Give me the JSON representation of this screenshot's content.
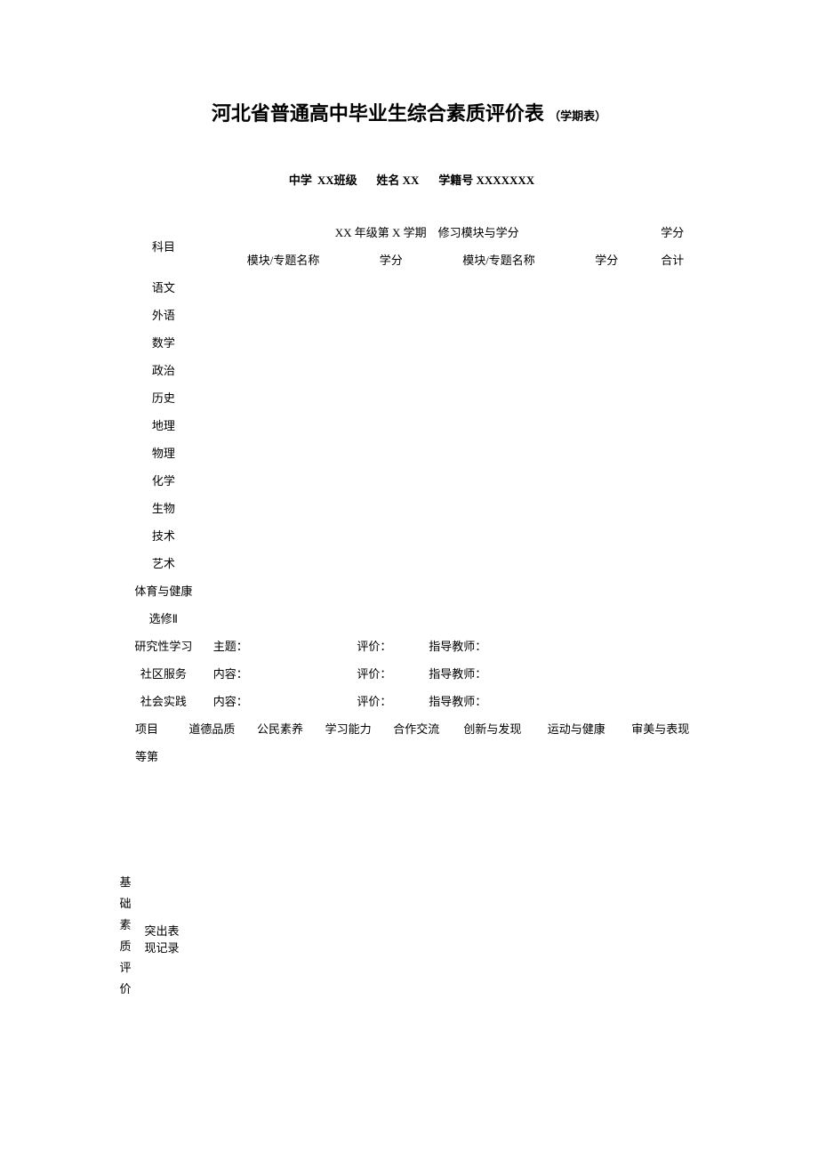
{
  "title": {
    "main": "河北省普通高中毕业生综合素质评价表",
    "suffix": "（学期表）"
  },
  "info": {
    "school_label": "中学",
    "class_value": "XX",
    "class_label": "班级",
    "name_label": "姓名",
    "name_value": "XX",
    "id_label": "学籍号",
    "id_value": "XXXXXXX"
  },
  "headers": {
    "subject": "科目",
    "semester": "XX 年级第 X 学期　修习模块与学分",
    "credit_total_top": "学分",
    "module_name": "模块/专题名称",
    "credit": "学分",
    "module_name2": "模块/专题名称",
    "credit2": "学分",
    "total": "合计"
  },
  "subjects": [
    "语文",
    "外语",
    "数学",
    "政治",
    "历史",
    "地理",
    "物理",
    "化学",
    "生物",
    "技术",
    "艺术",
    "体育与健康",
    "选修Ⅱ"
  ],
  "activities": {
    "research": {
      "label": "研究性学习",
      "c1": "主题：",
      "c2": "评价：",
      "c3": "指导教师："
    },
    "community": {
      "label": "社区服务",
      "c1": "内容：",
      "c2": "评价：",
      "c3": "指导教师："
    },
    "practice": {
      "label": "社会实践",
      "c1": "内容：",
      "c2": "评价：",
      "c3": "指导教师："
    }
  },
  "quality": {
    "vertical_label": "基础素质评价",
    "project_label": "项目",
    "dims": [
      "道德品质",
      "公民素养",
      "学习能力",
      "合作交流",
      "创新与发现",
      "运动与健康",
      "审美与表现"
    ],
    "rank_label": "等第",
    "record_label": "突出表现记录"
  },
  "colors": {
    "text": "#000000",
    "background": "#ffffff"
  }
}
